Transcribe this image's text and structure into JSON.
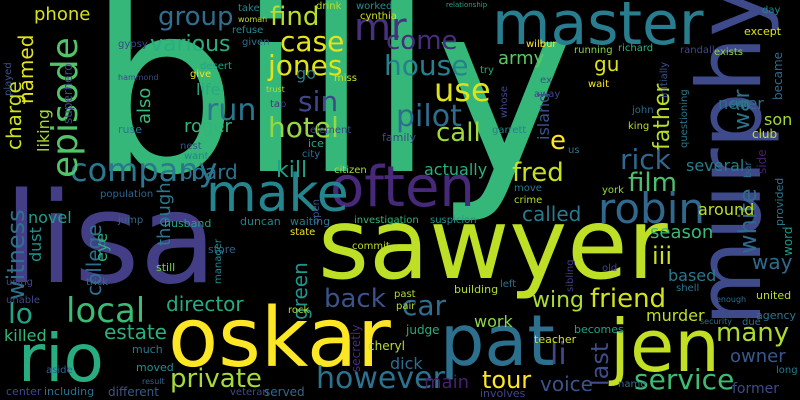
{
  "words": [
    {
      "id": "billy",
      "text": "billy",
      "color": "#35b779"
    },
    {
      "id": "lisa",
      "text": "lisa",
      "color": "#433e85"
    },
    {
      "id": "sawyer",
      "text": "sawyer",
      "color": "#bddf26"
    },
    {
      "id": "murphy",
      "text": "murphy",
      "color": "#3e4a89"
    },
    {
      "id": "oskar",
      "text": "oskar",
      "color": "#fde725"
    },
    {
      "id": "pat",
      "text": "pat",
      "color": "#2d708e"
    },
    {
      "id": "jen",
      "text": "jen",
      "color": "#c2df23"
    },
    {
      "id": "rio",
      "text": "rio",
      "color": "#27ad81"
    },
    {
      "id": "master",
      "text": "master",
      "color": "#287d8e"
    },
    {
      "id": "often",
      "text": "often",
      "color": "#482878"
    },
    {
      "id": "make",
      "text": "make",
      "color": "#25858e"
    },
    {
      "id": "company",
      "text": "company",
      "color": "#2a788e"
    },
    {
      "id": "episode",
      "text": "episode",
      "color": "#52c569"
    },
    {
      "id": "robin",
      "text": "robin",
      "color": "#31688e"
    },
    {
      "id": "many",
      "text": "many",
      "color": "#addc30"
    },
    {
      "id": "service",
      "text": "service",
      "color": "#3dbc74"
    },
    {
      "id": "however",
      "text": "however",
      "color": "#2c728e"
    },
    {
      "id": "private",
      "text": "private",
      "color": "#a5db36"
    },
    {
      "id": "local",
      "text": "local",
      "color": "#3bbb75"
    },
    {
      "id": "lo",
      "text": "lo",
      "color": "#20a486"
    },
    {
      "id": "mr",
      "text": "mr",
      "color": "#46327e"
    },
    {
      "id": "come",
      "text": "come",
      "color": "#472d7b"
    },
    {
      "id": "house",
      "text": "house",
      "color": "#26818e"
    },
    {
      "id": "use",
      "text": "use",
      "color": "#dde318"
    },
    {
      "id": "pilot",
      "text": "pilot",
      "color": "#2f6c8e"
    },
    {
      "id": "call",
      "text": "call",
      "color": "#a0da39"
    },
    {
      "id": "jones",
      "text": "jones",
      "color": "#dfe318"
    },
    {
      "id": "sin",
      "text": "sin",
      "color": "#3f4788"
    },
    {
      "id": "hotel",
      "text": "hotel",
      "color": "#95d840"
    },
    {
      "id": "case",
      "text": "case",
      "color": "#e5e419"
    },
    {
      "id": "find",
      "text": "find",
      "color": "#bade28"
    },
    {
      "id": "group",
      "text": "group",
      "color": "#2e6e8e"
    },
    {
      "id": "various",
      "text": "various",
      "color": "#29af7f"
    },
    {
      "id": "run",
      "text": "run",
      "color": "#2a768e"
    },
    {
      "id": "board",
      "text": "board",
      "color": "#2c738e"
    },
    {
      "id": "kill",
      "text": "kill",
      "color": "#1fa088"
    },
    {
      "id": "fred",
      "text": "fred",
      "color": "#c8e020"
    },
    {
      "id": "rick",
      "text": "rick",
      "color": "#31668e"
    },
    {
      "id": "film",
      "text": "film",
      "color": "#4ac16d"
    },
    {
      "id": "called",
      "text": "called",
      "color": "#29798e"
    },
    {
      "id": "wing",
      "text": "wing",
      "color": "#aadc32"
    },
    {
      "id": "friend",
      "text": "friend",
      "color": "#d2e21b"
    },
    {
      "id": "car",
      "text": "car",
      "color": "#2e6f8e"
    },
    {
      "id": "back",
      "text": "back",
      "color": "#3b528b"
    },
    {
      "id": "director",
      "text": "director",
      "color": "#25ab82"
    },
    {
      "id": "estate",
      "text": "estate",
      "color": "#2ab07f"
    },
    {
      "id": "tour",
      "text": "tour",
      "color": "#fde725"
    },
    {
      "id": "voice",
      "text": "voice",
      "color": "#3b528b"
    },
    {
      "id": "last",
      "text": "last",
      "color": "#3e4c8a"
    },
    {
      "id": "li",
      "text": "li",
      "color": "#3f4889"
    },
    {
      "id": "witness",
      "text": "witness",
      "color": "#2d718e"
    },
    {
      "id": "college",
      "text": "college",
      "color": "#2d708e"
    },
    {
      "id": "charge",
      "text": "charge",
      "color": "#cde11d"
    },
    {
      "id": "named",
      "text": "named",
      "color": "#e2e418"
    },
    {
      "id": "phone",
      "text": "phone",
      "color": "#d8e219"
    },
    {
      "id": "green",
      "text": "green",
      "color": "#1f968b"
    },
    {
      "id": "white",
      "text": "white",
      "color": "#30698e"
    },
    {
      "id": "war",
      "text": "war",
      "color": "#2c738e"
    },
    {
      "id": "father",
      "text": "father",
      "color": "#b5de2b"
    },
    {
      "id": "army",
      "text": "army",
      "color": "#5cc863"
    },
    {
      "id": "gu",
      "text": "gu",
      "color": "#dde318"
    },
    {
      "id": "never",
      "text": "never",
      "color": "#2e6d8e"
    },
    {
      "id": "son",
      "text": "son",
      "color": "#a2da37"
    },
    {
      "id": "way",
      "text": "way",
      "color": "#2f6b8e"
    },
    {
      "id": "around",
      "text": "around",
      "color": "#c0df25"
    },
    {
      "id": "several",
      "text": "several",
      "color": "#277f8e"
    },
    {
      "id": "season",
      "text": "season",
      "color": "#3aba76"
    },
    {
      "id": "iii",
      "text": "iii",
      "color": "#cae11f"
    },
    {
      "id": "based",
      "text": "based",
      "color": "#2a778e"
    },
    {
      "id": "murder",
      "text": "murder",
      "color": "#c0df25"
    },
    {
      "id": "owner",
      "text": "owner",
      "color": "#38588c"
    },
    {
      "id": "work",
      "text": "work",
      "color": "#8bd646"
    },
    {
      "id": "dick",
      "text": "dick",
      "color": "#2e6d8e"
    },
    {
      "id": "main",
      "text": "main",
      "color": "#481f70"
    },
    {
      "id": "killed",
      "text": "killed",
      "color": "#35b779"
    },
    {
      "id": "roger",
      "text": "roger",
      "color": "#31b57b"
    },
    {
      "id": "life",
      "text": "life",
      "color": "#25ab82"
    },
    {
      "id": "also",
      "text": "also",
      "color": "#3aba76"
    },
    {
      "id": "though",
      "text": "though",
      "color": "#2a778e"
    },
    {
      "id": "eye",
      "text": "eye",
      "color": "#29af7f"
    },
    {
      "id": "novel",
      "text": "novel",
      "color": "#1f9e89"
    },
    {
      "id": "dust",
      "text": "dust",
      "color": "#20928c"
    },
    {
      "id": "liking",
      "text": "liking",
      "color": "#a8db34"
    },
    {
      "id": "actually",
      "text": "actually",
      "color": "#2ab07f"
    },
    {
      "id": "island",
      "text": "island",
      "color": "#3b528b"
    },
    {
      "id": "go",
      "text": "go",
      "color": "#27808e"
    },
    {
      "id": "e",
      "text": "e",
      "color": "#fde725"
    },
    {
      "id": "former",
      "text": "former",
      "color": "#3e4a89"
    },
    {
      "id": "long",
      "text": "long",
      "color": "#2a788e"
    },
    {
      "id": "became",
      "text": "became",
      "color": "#2f6c8e"
    },
    {
      "id": "word",
      "text": "word",
      "color": "#1f9a8a"
    },
    {
      "id": "united",
      "text": "united",
      "color": "#b8de29"
    },
    {
      "id": "agency",
      "text": "agency",
      "color": "#2a788e"
    },
    {
      "id": "except",
      "text": "except",
      "color": "#dde318"
    },
    {
      "id": "day",
      "text": "day",
      "color": "#23898e"
    },
    {
      "id": "superhero",
      "text": "superhero",
      "color": "#3f4788"
    },
    {
      "id": "played",
      "text": "played",
      "color": "#3b518b"
    },
    {
      "id": "gypsy",
      "text": "gypsy",
      "color": "#3f4788"
    },
    {
      "id": "ruse",
      "text": "ruse",
      "color": "#2a778e"
    },
    {
      "id": "different",
      "text": "different",
      "color": "#39568c"
    },
    {
      "id": "center",
      "text": "center",
      "color": "#3e4989"
    },
    {
      "id": "including",
      "text": "including",
      "color": "#2c728e"
    },
    {
      "id": "aside",
      "text": "aside",
      "color": "#355f8d"
    },
    {
      "id": "much",
      "text": "much",
      "color": "#2b758e"
    },
    {
      "id": "moved",
      "text": "moved",
      "color": "#21918c"
    },
    {
      "id": "result",
      "text": "result",
      "color": "#34608d"
    },
    {
      "id": "veteran",
      "text": "veteran",
      "color": "#3e4a89"
    },
    {
      "id": "served",
      "text": "served",
      "color": "#31688e"
    },
    {
      "id": "cheryl",
      "text": "cheryl",
      "color": "#bade28"
    },
    {
      "id": "teacher",
      "text": "teacher",
      "color": "#d0e11c"
    },
    {
      "id": "becomes",
      "text": "becomes",
      "color": "#20a386"
    },
    {
      "id": "involves",
      "text": "involves",
      "color": "#3f4788"
    },
    {
      "id": "name",
      "text": "name",
      "color": "#2d708e"
    },
    {
      "id": "judge",
      "text": "judge",
      "color": "#26ad81"
    },
    {
      "id": "secretly",
      "text": "secretly",
      "color": "#472d7b"
    },
    {
      "id": "building",
      "text": "building",
      "color": "#b2dd2d"
    },
    {
      "id": "past",
      "text": "past",
      "color": "#b2dd2d"
    },
    {
      "id": "pair",
      "text": "pair",
      "color": "#b2dd2d"
    },
    {
      "id": "rock",
      "text": "rock",
      "color": "#b2dd2d"
    },
    {
      "id": "commit",
      "text": "commit",
      "color": "#bade28"
    },
    {
      "id": "state",
      "text": "state",
      "color": "#f1e51d"
    },
    {
      "id": "open",
      "text": "open",
      "color": "#3a538b"
    },
    {
      "id": "waiting",
      "text": "waiting",
      "color": "#2a788e"
    },
    {
      "id": "duncan",
      "text": "duncan",
      "color": "#25838e"
    },
    {
      "id": "husband",
      "text": "husband",
      "color": "#20a386"
    },
    {
      "id": "population",
      "text": "population",
      "color": "#31668e"
    },
    {
      "id": "jump",
      "text": "jump",
      "color": "#31668e"
    },
    {
      "id": "store",
      "text": "store",
      "color": "#355f8d"
    },
    {
      "id": "still",
      "text": "still",
      "color": "#7ad151"
    },
    {
      "id": "manager",
      "text": "manager",
      "color": "#23898e"
    },
    {
      "id": "investigation",
      "text": "investigation",
      "color": "#31b57b"
    },
    {
      "id": "suspicion",
      "text": "suspicion",
      "color": "#21918c"
    },
    {
      "id": "citizen",
      "text": "citizen",
      "color": "#a8db34"
    },
    {
      "id": "city",
      "text": "city",
      "color": "#2c728e"
    },
    {
      "id": "ice",
      "text": "ice",
      "color": "#25ab82"
    },
    {
      "id": "element",
      "text": "element",
      "color": "#3e4a89"
    },
    {
      "id": "family",
      "text": "family",
      "color": "#3f4788"
    },
    {
      "id": "nest",
      "text": "nest",
      "color": "#3a538b"
    },
    {
      "id": "want",
      "text": "want",
      "color": "#25838e"
    },
    {
      "id": "tap",
      "text": "tap",
      "color": "#453781"
    },
    {
      "id": "miss",
      "text": "miss",
      "color": "#c5e021"
    },
    {
      "id": "trust",
      "text": "trust",
      "color": "#b5de2b"
    },
    {
      "id": "desert",
      "text": "desert",
      "color": "#20a486"
    },
    {
      "id": "give",
      "text": "give",
      "color": "#f1e51d"
    },
    {
      "id": "given",
      "text": "given",
      "color": "#2e6e8e"
    },
    {
      "id": "refuse",
      "text": "refuse",
      "color": "#23898e"
    },
    {
      "id": "woman",
      "text": "woman",
      "color": "#c2df23"
    },
    {
      "id": "take",
      "text": "take",
      "color": "#25858e"
    },
    {
      "id": "drink",
      "text": "drink",
      "color": "#bade28"
    },
    {
      "id": "worked",
      "text": "worked",
      "color": "#21918c"
    },
    {
      "id": "cynthia",
      "text": "cynthia",
      "color": "#d0e11c"
    },
    {
      "id": "relationship",
      "text": "relationship",
      "color": "#20a386"
    },
    {
      "id": "randall",
      "text": "randall",
      "color": "#3e4989"
    },
    {
      "id": "wilbur",
      "text": "wilbur",
      "color": "#fde725"
    },
    {
      "id": "running",
      "text": "running",
      "color": "#89d548"
    },
    {
      "id": "richard",
      "text": "richard",
      "color": "#31b57b"
    },
    {
      "id": "initially",
      "text": "initially",
      "color": "#3b528b"
    },
    {
      "id": "exists",
      "text": "exists",
      "color": "#8bd646"
    },
    {
      "id": "wait",
      "text": "wait",
      "color": "#fde725"
    },
    {
      "id": "try",
      "text": "try",
      "color": "#25ab82"
    },
    {
      "id": "ex",
      "text": "ex",
      "color": "#3b528b"
    },
    {
      "id": "away",
      "text": "away",
      "color": "#3e4989"
    },
    {
      "id": "whose",
      "text": "whose",
      "color": "#3f4889"
    },
    {
      "id": "garrett",
      "text": "garrett",
      "color": "#27808e"
    },
    {
      "id": "us",
      "text": "us",
      "color": "#2c728e"
    },
    {
      "id": "john",
      "text": "john",
      "color": "#31688e"
    },
    {
      "id": "king",
      "text": "king",
      "color": "#b5de2b"
    },
    {
      "id": "questioning",
      "text": "questioning",
      "color": "#2a768e"
    },
    {
      "id": "skill",
      "text": "skill",
      "color": "#2a788e"
    },
    {
      "id": "club",
      "text": "club",
      "color": "#c5e021"
    },
    {
      "id": "bar",
      "text": "bar",
      "color": "#2d708e"
    },
    {
      "id": "side",
      "text": "side",
      "color": "#481f70"
    },
    {
      "id": "provided",
      "text": "provided",
      "color": "#2a768e"
    },
    {
      "id": "york",
      "text": "york",
      "color": "#95d840"
    },
    {
      "id": "move",
      "text": "move",
      "color": "#2a778e"
    },
    {
      "id": "crime",
      "text": "crime",
      "color": "#b5de2b"
    },
    {
      "id": "left",
      "text": "left",
      "color": "#2c728e"
    },
    {
      "id": "sibling",
      "text": "sibling",
      "color": "#433e85"
    },
    {
      "id": "old",
      "text": "old",
      "color": "#3e4989"
    },
    {
      "id": "shell",
      "text": "shell",
      "color": "#2a768e"
    },
    {
      "id": "enough",
      "text": "enough",
      "color": "#2e6e8e"
    },
    {
      "id": "security",
      "text": "security",
      "color": "#2e6e8e"
    },
    {
      "id": "due",
      "text": "due",
      "color": "#2e6e8e"
    },
    {
      "id": "unable",
      "text": "unable",
      "color": "#3e4a89"
    },
    {
      "id": "using",
      "text": "using",
      "color": "#3e4a89"
    },
    {
      "id": "trick",
      "text": "trick",
      "color": "#2d708e"
    },
    {
      "id": "hammond",
      "text": "hammond",
      "color": "#3e4989"
    }
  ]
}
